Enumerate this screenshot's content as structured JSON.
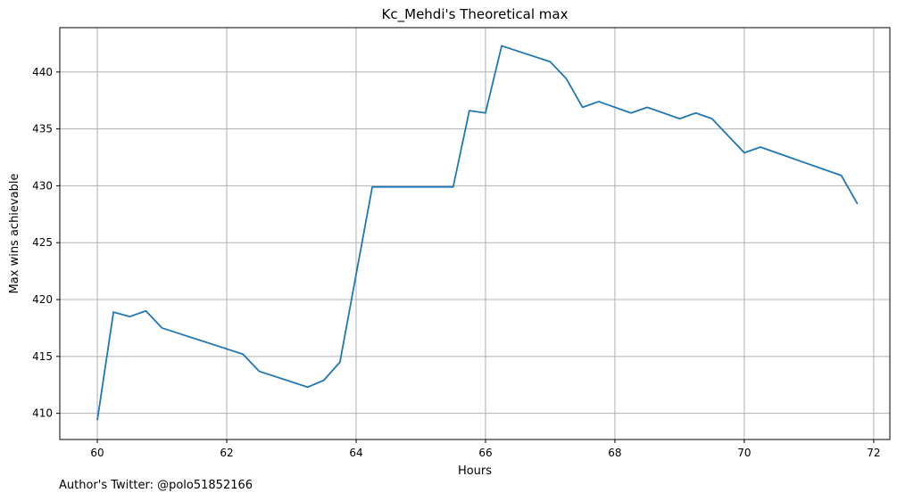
{
  "chart_data": {
    "type": "line",
    "title": "Kc_Mehdi's Theoretical max",
    "xlabel": "Hours",
    "ylabel": "Max wins achievable",
    "xlim": [
      59.42,
      72.25
    ],
    "ylim": [
      407.7,
      443.9
    ],
    "xticks": [
      60,
      62,
      64,
      66,
      68,
      70,
      72
    ],
    "yticks": [
      410,
      415,
      420,
      425,
      430,
      435,
      440
    ],
    "grid": true,
    "series": [
      {
        "color": "#1f77b4",
        "x": [
          60.0,
          60.25,
          60.5,
          60.75,
          61.0,
          62.25,
          62.5,
          63.25,
          63.5,
          63.75,
          64.25,
          65.5,
          65.75,
          66.0,
          66.25,
          67.0,
          67.25,
          67.5,
          67.75,
          68.25,
          68.5,
          69.0,
          69.25,
          69.5,
          70.0,
          70.25,
          71.5,
          71.75
        ],
        "y": [
          409.4,
          418.9,
          418.5,
          419.0,
          417.5,
          415.2,
          413.7,
          412.3,
          412.9,
          414.5,
          429.9,
          429.9,
          436.6,
          436.4,
          442.3,
          440.9,
          439.4,
          436.9,
          437.4,
          436.4,
          436.9,
          435.9,
          436.4,
          435.9,
          432.9,
          433.4,
          430.9,
          428.4
        ]
      }
    ]
  },
  "footer": "Author's Twitter: @polo51852166"
}
